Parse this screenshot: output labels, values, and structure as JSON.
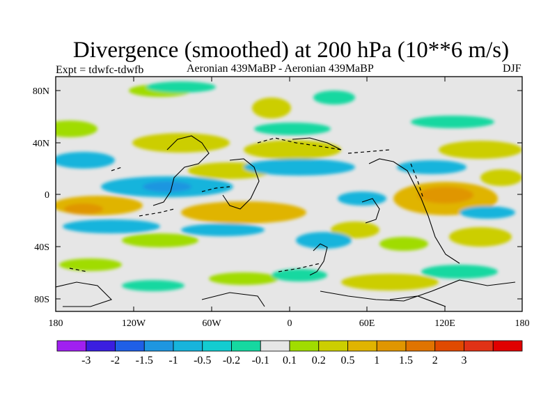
{
  "title": "Divergence (smoothed) at 200 hPa (10**6 m/s)",
  "subtitle_left": "Expt = tdwfc-tdwfb",
  "subtitle_center": "Aeronian 439MaBP - Aeronian 439MaBP",
  "subtitle_right": "DJF",
  "map": {
    "background_color": "#e6e6e6",
    "lat_ticks": [
      "80N",
      "40N",
      "0",
      "40S",
      "80S"
    ],
    "lon_ticks": [
      "180",
      "120W",
      "60W",
      "0",
      "60E",
      "120E",
      "180"
    ]
  },
  "colorbar": {
    "colors": [
      "#a020f0",
      "#3a1ee0",
      "#1f5fe6",
      "#1e96e0",
      "#17b4dc",
      "#13ccd0",
      "#16d8a0",
      "#e6e6e6",
      "#a0dc00",
      "#ccce00",
      "#e0b400",
      "#e09600",
      "#e07400",
      "#e04a00",
      "#e03216",
      "#e00000"
    ],
    "labels": [
      "-3",
      "-2",
      "-1.5",
      "-1",
      "-0.5",
      "-0.2",
      "-0.1",
      "0.1",
      "0.2",
      "0.5",
      "1",
      "1.5",
      "2",
      "3"
    ]
  }
}
